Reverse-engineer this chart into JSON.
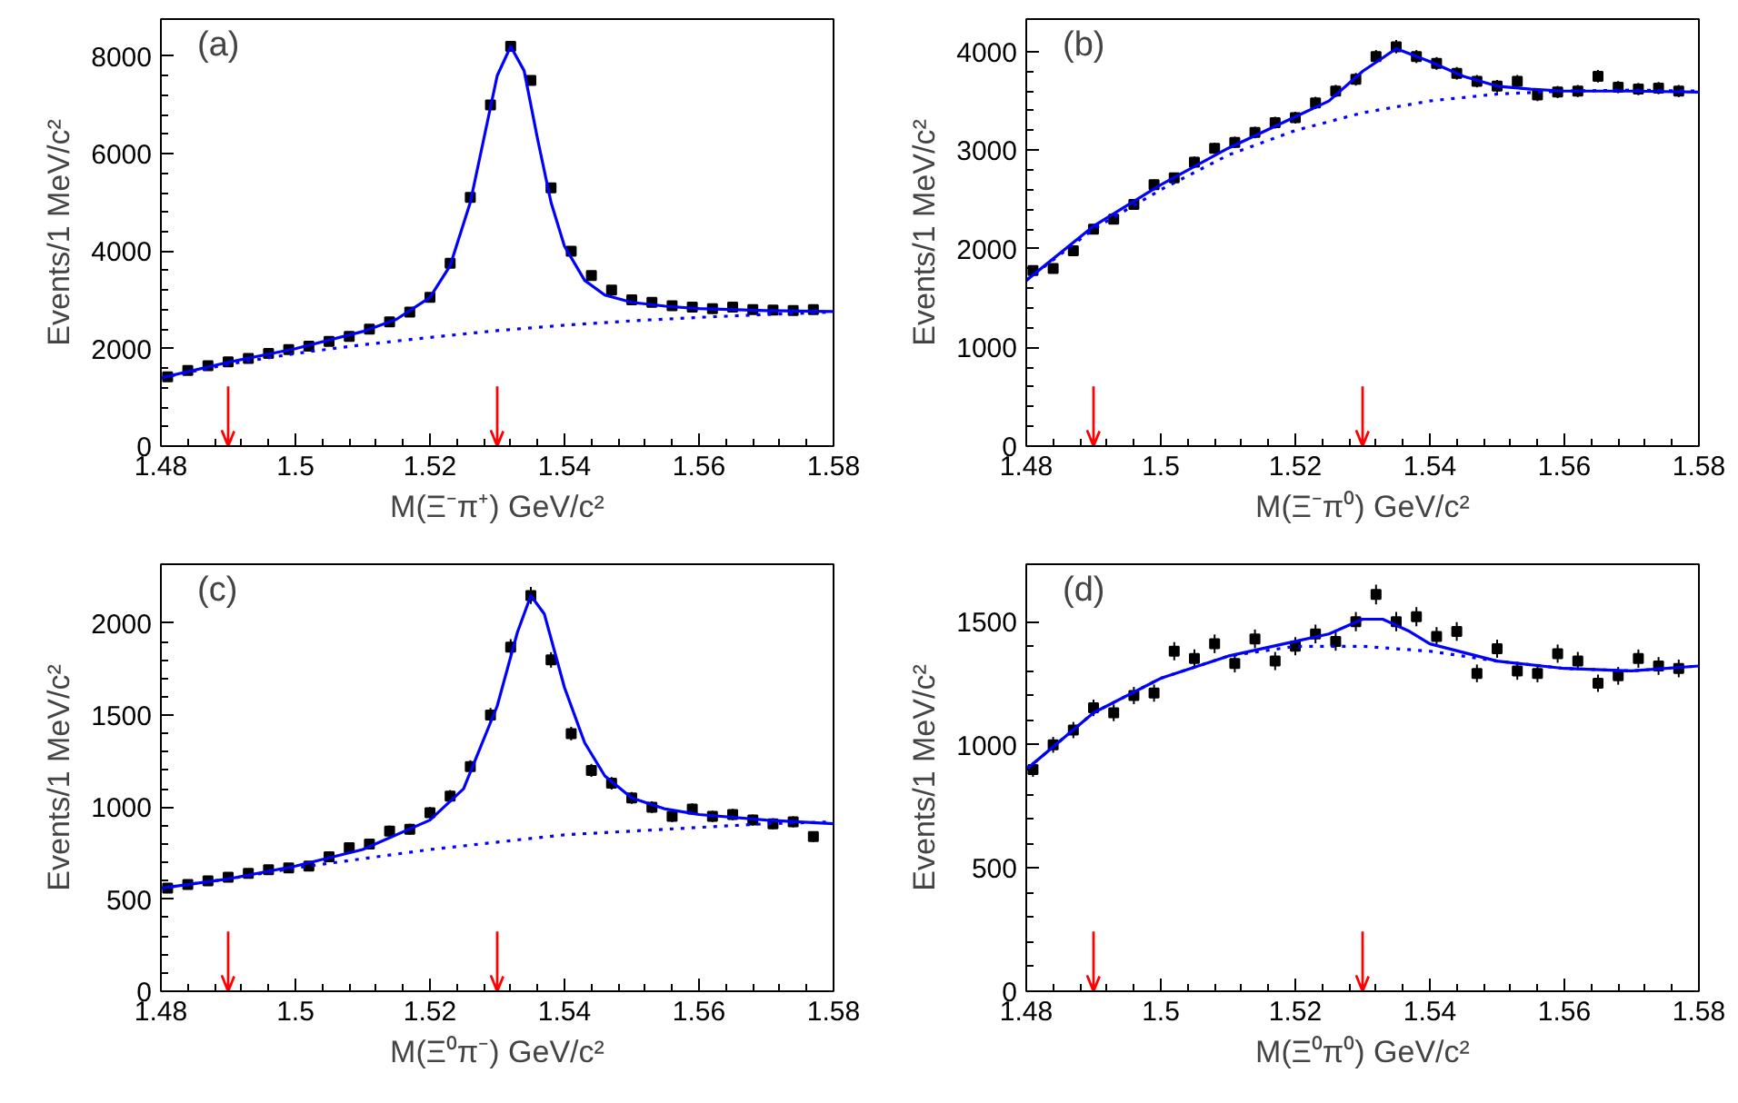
{
  "chart_data": [
    {
      "type": "scatter",
      "xlabel": "M(Ξ⁻π⁺) GeV/c²",
      "ylabel": "Events/1 MeV/c²",
      "annotations": [
        "(a)"
      ],
      "xlim": [
        1.48,
        1.58
      ],
      "ylim": [
        0,
        8760
      ],
      "xticks": [
        1.48,
        1.5,
        1.52,
        1.54,
        1.56,
        1.58
      ],
      "yticks": [
        0,
        2000,
        4000,
        6000,
        8000
      ],
      "ref_lines": [
        {
          "axis": "x",
          "value": 1.49,
          "color": "#ff0000"
        },
        {
          "axis": "x",
          "value": 1.53,
          "color": "#ff0000"
        }
      ],
      "series": [
        {
          "marker": "square",
          "color": "#000000",
          "x": [
            1.481,
            1.484,
            1.487,
            1.49,
            1.493,
            1.496,
            1.499,
            1.502,
            1.505,
            1.508,
            1.511,
            1.514,
            1.517,
            1.52,
            1.523,
            1.526,
            1.529,
            1.532,
            1.535,
            1.538,
            1.541,
            1.544,
            1.547,
            1.55,
            1.553,
            1.556,
            1.559,
            1.562,
            1.565,
            1.568,
            1.571,
            1.574,
            1.577
          ],
          "values": [
            1420,
            1550,
            1650,
            1730,
            1800,
            1900,
            1980,
            2050,
            2150,
            2250,
            2400,
            2550,
            2750,
            3050,
            3750,
            5100,
            7000,
            8200,
            7500,
            5300,
            4000,
            3500,
            3200,
            3000,
            2950,
            2880,
            2850,
            2820,
            2850,
            2800,
            2790,
            2780,
            2800
          ],
          "errors": [
            40,
            40,
            40,
            42,
            42,
            44,
            44,
            45,
            46,
            47,
            49,
            50,
            52,
            55,
            61,
            71,
            84,
            91,
            87,
            73,
            63,
            59,
            57,
            55,
            54,
            54,
            53,
            53,
            53,
            53,
            53,
            53,
            53
          ]
        },
        {
          "type": "line",
          "color": "#0000ff",
          "line_style": "solid",
          "x": [
            1.48,
            1.49,
            1.5,
            1.51,
            1.515,
            1.52,
            1.523,
            1.526,
            1.528,
            1.53,
            1.532,
            1.534,
            1.536,
            1.538,
            1.54,
            1.543,
            1.546,
            1.55,
            1.555,
            1.56,
            1.57,
            1.58
          ],
          "values": [
            1400,
            1720,
            2000,
            2350,
            2600,
            3050,
            3700,
            5000,
            6300,
            7600,
            8200,
            7700,
            6300,
            5000,
            4100,
            3400,
            3100,
            2950,
            2870,
            2820,
            2780,
            2760
          ]
        },
        {
          "type": "line",
          "color": "#0000ff",
          "line_style": "dotted",
          "x": [
            1.48,
            1.49,
            1.5,
            1.51,
            1.52,
            1.53,
            1.54,
            1.55,
            1.56,
            1.57,
            1.58
          ],
          "values": [
            1400,
            1680,
            1900,
            2080,
            2230,
            2370,
            2480,
            2570,
            2640,
            2700,
            2750
          ]
        }
      ]
    },
    {
      "type": "scatter",
      "xlabel": "M(Ξ⁻π⁰) GeV/c²",
      "ylabel": "Events/1 MeV/c²",
      "annotations": [
        "(b)"
      ],
      "xlim": [
        1.48,
        1.58
      ],
      "ylim": [
        0,
        4330
      ],
      "xticks": [
        1.48,
        1.5,
        1.52,
        1.54,
        1.56,
        1.58
      ],
      "yticks": [
        0,
        1000,
        2000,
        3000,
        4000
      ],
      "ref_lines": [
        {
          "axis": "x",
          "value": 1.49,
          "color": "#ff0000"
        },
        {
          "axis": "x",
          "value": 1.53,
          "color": "#ff0000"
        }
      ],
      "series": [
        {
          "marker": "square",
          "color": "#000000",
          "x": [
            1.481,
            1.484,
            1.487,
            1.49,
            1.493,
            1.496,
            1.499,
            1.502,
            1.505,
            1.508,
            1.511,
            1.514,
            1.517,
            1.52,
            1.523,
            1.526,
            1.529,
            1.532,
            1.535,
            1.538,
            1.541,
            1.544,
            1.547,
            1.55,
            1.553,
            1.556,
            1.559,
            1.562,
            1.565,
            1.568,
            1.571,
            1.574,
            1.577
          ],
          "values": [
            1780,
            1800,
            1980,
            2200,
            2300,
            2450,
            2650,
            2720,
            2880,
            3020,
            3080,
            3180,
            3280,
            3330,
            3480,
            3600,
            3720,
            3950,
            4050,
            3950,
            3880,
            3780,
            3700,
            3650,
            3700,
            3560,
            3590,
            3600,
            3750,
            3640,
            3620,
            3630,
            3600
          ],
          "errors": [
            45,
            45,
            47,
            50,
            50,
            52,
            54,
            54,
            56,
            57,
            58,
            59,
            60,
            60,
            62,
            63,
            64,
            66,
            67,
            66,
            65,
            64,
            63,
            63,
            63,
            62,
            62,
            62,
            63,
            62,
            62,
            62,
            62
          ]
        },
        {
          "type": "line",
          "color": "#0000ff",
          "line_style": "solid",
          "x": [
            1.48,
            1.49,
            1.5,
            1.51,
            1.52,
            1.525,
            1.53,
            1.535,
            1.54,
            1.545,
            1.55,
            1.555,
            1.56,
            1.57,
            1.58
          ],
          "values": [
            1680,
            2230,
            2650,
            3020,
            3340,
            3500,
            3800,
            4030,
            3900,
            3750,
            3650,
            3620,
            3600,
            3600,
            3590
          ]
        },
        {
          "type": "line",
          "color": "#0000ff",
          "line_style": "dotted",
          "x": [
            1.48,
            1.49,
            1.5,
            1.51,
            1.52,
            1.53,
            1.54,
            1.55,
            1.56,
            1.57,
            1.58
          ],
          "values": [
            1680,
            2200,
            2600,
            2950,
            3200,
            3380,
            3500,
            3570,
            3600,
            3610,
            3600
          ]
        }
      ]
    },
    {
      "type": "scatter",
      "xlabel": "M(Ξ⁰π⁻) GeV/c²",
      "ylabel": "Events/1 MeV/c²",
      "annotations": [
        "(c)"
      ],
      "xlim": [
        1.48,
        1.58
      ],
      "ylim": [
        0,
        2320
      ],
      "xticks": [
        1.48,
        1.5,
        1.52,
        1.54,
        1.56,
        1.58
      ],
      "yticks": [
        0,
        500,
        1000,
        1500,
        2000
      ],
      "ref_lines": [
        {
          "axis": "x",
          "value": 1.49,
          "color": "#ff0000"
        },
        {
          "axis": "x",
          "value": 1.53,
          "color": "#ff0000"
        }
      ],
      "series": [
        {
          "marker": "square",
          "color": "#000000",
          "x": [
            1.481,
            1.484,
            1.487,
            1.49,
            1.493,
            1.496,
            1.499,
            1.502,
            1.505,
            1.508,
            1.511,
            1.514,
            1.517,
            1.52,
            1.523,
            1.526,
            1.529,
            1.532,
            1.535,
            1.538,
            1.541,
            1.544,
            1.547,
            1.55,
            1.553,
            1.556,
            1.559,
            1.562,
            1.565,
            1.568,
            1.571,
            1.574,
            1.577
          ],
          "values": [
            560,
            580,
            600,
            620,
            640,
            660,
            670,
            680,
            730,
            780,
            800,
            870,
            880,
            970,
            1060,
            1220,
            1500,
            1870,
            2150,
            1800,
            1400,
            1200,
            1130,
            1050,
            1000,
            950,
            990,
            950,
            960,
            930,
            910,
            920,
            840
          ],
          "errors": [
            24,
            24,
            25,
            25,
            25,
            26,
            26,
            26,
            27,
            28,
            28,
            30,
            30,
            31,
            33,
            35,
            39,
            43,
            46,
            42,
            37,
            35,
            34,
            32,
            32,
            31,
            31,
            31,
            31,
            30,
            30,
            30,
            29
          ]
        },
        {
          "type": "line",
          "color": "#0000ff",
          "line_style": "solid",
          "x": [
            1.48,
            1.49,
            1.5,
            1.51,
            1.52,
            1.525,
            1.53,
            1.533,
            1.535,
            1.537,
            1.54,
            1.543,
            1.546,
            1.55,
            1.555,
            1.56,
            1.57,
            1.58
          ],
          "values": [
            560,
            610,
            680,
            770,
            930,
            1100,
            1550,
            1950,
            2150,
            2050,
            1650,
            1350,
            1170,
            1050,
            990,
            960,
            930,
            910
          ]
        },
        {
          "type": "line",
          "color": "#0000ff",
          "line_style": "dotted",
          "x": [
            1.48,
            1.49,
            1.5,
            1.51,
            1.52,
            1.53,
            1.54,
            1.55,
            1.56,
            1.57,
            1.58
          ],
          "values": [
            560,
            610,
            670,
            720,
            770,
            810,
            850,
            870,
            890,
            910,
            920
          ]
        }
      ]
    },
    {
      "type": "scatter",
      "xlabel": "M(Ξ⁰π⁰) GeV/c²",
      "ylabel": "Events/1 MeV/c²",
      "annotations": [
        "(d)"
      ],
      "xlim": [
        1.48,
        1.58
      ],
      "ylim": [
        0,
        1733
      ],
      "xticks": [
        1.48,
        1.5,
        1.52,
        1.54,
        1.56,
        1.58
      ],
      "yticks": [
        0,
        500,
        1000,
        1500
      ],
      "ref_lines": [
        {
          "axis": "x",
          "value": 1.49,
          "color": "#ff0000"
        },
        {
          "axis": "x",
          "value": 1.53,
          "color": "#ff0000"
        }
      ],
      "series": [
        {
          "marker": "square",
          "color": "#000000",
          "x": [
            1.481,
            1.484,
            1.487,
            1.49,
            1.493,
            1.496,
            1.499,
            1.502,
            1.505,
            1.508,
            1.511,
            1.514,
            1.517,
            1.52,
            1.523,
            1.526,
            1.529,
            1.532,
            1.535,
            1.538,
            1.541,
            1.544,
            1.547,
            1.55,
            1.553,
            1.556,
            1.559,
            1.562,
            1.565,
            1.568,
            1.571,
            1.574,
            1.577
          ],
          "values": [
            900,
            1000,
            1060,
            1150,
            1130,
            1200,
            1210,
            1380,
            1350,
            1410,
            1330,
            1430,
            1340,
            1400,
            1450,
            1420,
            1500,
            1610,
            1500,
            1520,
            1440,
            1460,
            1290,
            1390,
            1300,
            1290,
            1370,
            1340,
            1250,
            1280,
            1350,
            1320,
            1310
          ],
          "errors": [
            30,
            32,
            33,
            34,
            34,
            35,
            35,
            37,
            37,
            38,
            36,
            38,
            37,
            37,
            38,
            38,
            39,
            40,
            39,
            39,
            38,
            38,
            36,
            37,
            36,
            36,
            37,
            37,
            35,
            36,
            37,
            36,
            36
          ]
        },
        {
          "type": "line",
          "color": "#0000ff",
          "line_style": "solid",
          "x": [
            1.48,
            1.49,
            1.5,
            1.51,
            1.52,
            1.525,
            1.53,
            1.533,
            1.537,
            1.54,
            1.55,
            1.56,
            1.57,
            1.58
          ],
          "values": [
            900,
            1130,
            1270,
            1360,
            1420,
            1450,
            1510,
            1510,
            1460,
            1410,
            1340,
            1310,
            1300,
            1320
          ]
        },
        {
          "type": "line",
          "color": "#0000ff",
          "line_style": "dotted",
          "x": [
            1.48,
            1.49,
            1.5,
            1.51,
            1.52,
            1.53,
            1.54,
            1.55,
            1.56,
            1.57,
            1.58
          ],
          "values": [
            900,
            1130,
            1270,
            1360,
            1400,
            1400,
            1380,
            1340,
            1310,
            1300,
            1320
          ]
        }
      ]
    }
  ]
}
